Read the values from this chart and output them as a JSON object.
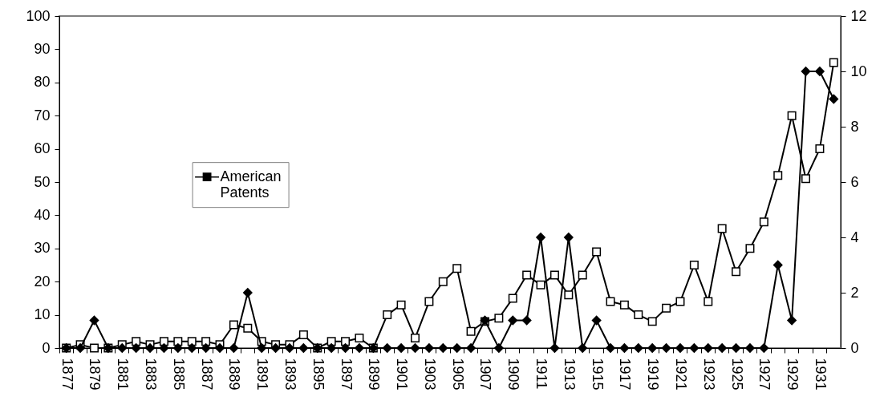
{
  "chart_data": {
    "type": "line",
    "categories": [
      "1877",
      null,
      "1879",
      null,
      "1881",
      null,
      "1883",
      null,
      "1885",
      null,
      "1887",
      null,
      "1889",
      null,
      "1891",
      null,
      "1893",
      null,
      "1895",
      null,
      "1897",
      null,
      "1899",
      null,
      "1901",
      null,
      "1903",
      null,
      "1905",
      null,
      "1907",
      null,
      "1909",
      null,
      "1911",
      null,
      "1913",
      null,
      "1915",
      null,
      "1917",
      null,
      "1919",
      null,
      "1921",
      null,
      "1923",
      null,
      "1925",
      null,
      "1927",
      null,
      "1929",
      null,
      "1931",
      null
    ],
    "series": [
      {
        "name": "American Patents",
        "color": "#000000",
        "marker": "square",
        "values": [
          0,
          1,
          0,
          0,
          1,
          2,
          1,
          2,
          2,
          2,
          2,
          1,
          7,
          6,
          2,
          1,
          1,
          4,
          0,
          2,
          2,
          3,
          0,
          10,
          13,
          3,
          14,
          20,
          24,
          5,
          8,
          9,
          15,
          22,
          19,
          22,
          16,
          22,
          29,
          14,
          13,
          10,
          8,
          12,
          14,
          25,
          14,
          36,
          23,
          30,
          38,
          52,
          70,
          51,
          60,
          86
        ]
      },
      {
        "color": "#000000",
        "marker": "diamond",
        "axis": "y2",
        "values": [
          0,
          0,
          1,
          0,
          0,
          0,
          0,
          0,
          0,
          0,
          0,
          0,
          0,
          2,
          0,
          0,
          0,
          0,
          0,
          0,
          0,
          0,
          0,
          0,
          0,
          0,
          0,
          0,
          0,
          0,
          1,
          0,
          1,
          1,
          4,
          0,
          4,
          0,
          1,
          0,
          0,
          0,
          0,
          0,
          0,
          0,
          0,
          0,
          0,
          0,
          0,
          3,
          1,
          10,
          10,
          9
        ]
      }
    ],
    "ylim": [
      0,
      100
    ],
    "yticks": [
      0,
      10,
      20,
      30,
      40,
      50,
      60,
      70,
      80,
      90,
      100
    ],
    "y2lim": [
      0,
      12
    ],
    "y2ticks": [
      0,
      2,
      4,
      6,
      8,
      10,
      12
    ],
    "grid": false,
    "legend": "left",
    "line_style": "solid"
  }
}
